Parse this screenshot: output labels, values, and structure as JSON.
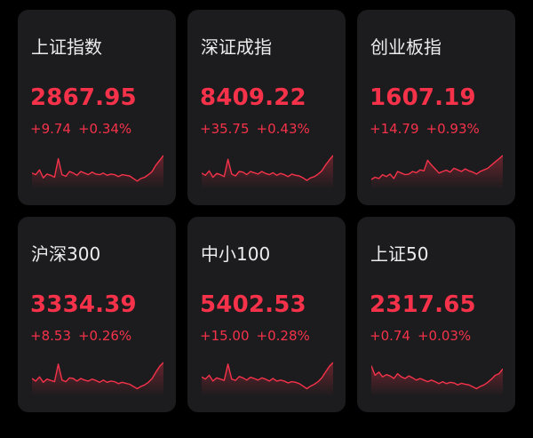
{
  "indices": [
    {
      "id": "sse",
      "name": "上证指数",
      "price": "2867.95",
      "change": "+9.74",
      "pct": "+0.34%",
      "trend": [
        0.55,
        0.6,
        0.45,
        0.7,
        0.58,
        0.62,
        0.68,
        0.1,
        0.6,
        0.65,
        0.5,
        0.55,
        0.62,
        0.5,
        0.55,
        0.6,
        0.52,
        0.58,
        0.6,
        0.55,
        0.62,
        0.58,
        0.6,
        0.66,
        0.6,
        0.62,
        0.64,
        0.72,
        0.8,
        0.72,
        0.68,
        0.6,
        0.5,
        0.3,
        0.15,
        0.0
      ]
    },
    {
      "id": "szse",
      "name": "深证成指",
      "price": "8409.22",
      "change": "+35.75",
      "pct": "+0.43%",
      "trend": [
        0.55,
        0.62,
        0.48,
        0.68,
        0.56,
        0.6,
        0.66,
        0.12,
        0.58,
        0.64,
        0.5,
        0.52,
        0.6,
        0.5,
        0.54,
        0.58,
        0.5,
        0.56,
        0.6,
        0.54,
        0.62,
        0.56,
        0.6,
        0.66,
        0.58,
        0.62,
        0.64,
        0.7,
        0.78,
        0.7,
        0.66,
        0.58,
        0.48,
        0.3,
        0.14,
        0.0
      ]
    },
    {
      "id": "chinext",
      "name": "创业板指",
      "price": "1607.19",
      "change": "+14.79",
      "pct": "+0.93%",
      "trend": [
        0.75,
        0.68,
        0.72,
        0.6,
        0.66,
        0.58,
        0.72,
        0.5,
        0.55,
        0.6,
        0.58,
        0.5,
        0.54,
        0.45,
        0.48,
        0.15,
        0.3,
        0.42,
        0.55,
        0.5,
        0.46,
        0.52,
        0.4,
        0.45,
        0.5,
        0.42,
        0.48,
        0.52,
        0.58,
        0.5,
        0.45,
        0.4,
        0.3,
        0.2,
        0.1,
        0.0
      ]
    },
    {
      "id": "hs300",
      "name": "沪深300",
      "price": "3334.39",
      "change": "+8.53",
      "pct": "+0.26%",
      "trend": [
        0.5,
        0.58,
        0.45,
        0.62,
        0.52,
        0.56,
        0.6,
        0.05,
        0.55,
        0.6,
        0.48,
        0.5,
        0.58,
        0.5,
        0.55,
        0.58,
        0.52,
        0.56,
        0.62,
        0.55,
        0.62,
        0.58,
        0.6,
        0.66,
        0.62,
        0.65,
        0.68,
        0.75,
        0.82,
        0.75,
        0.7,
        0.62,
        0.5,
        0.3,
        0.12,
        0.0
      ]
    },
    {
      "id": "sme100",
      "name": "中小100",
      "price": "5402.53",
      "change": "+15.00",
      "pct": "+0.28%",
      "trend": [
        0.45,
        0.52,
        0.4,
        0.58,
        0.48,
        0.52,
        0.56,
        0.05,
        0.52,
        0.56,
        0.44,
        0.48,
        0.55,
        0.46,
        0.5,
        0.55,
        0.48,
        0.52,
        0.58,
        0.5,
        0.58,
        0.55,
        0.58,
        0.64,
        0.6,
        0.62,
        0.66,
        0.74,
        0.82,
        0.74,
        0.68,
        0.6,
        0.48,
        0.3,
        0.12,
        0.0
      ]
    },
    {
      "id": "sse50",
      "name": "上证50",
      "price": "2317.65",
      "change": "+0.74",
      "pct": "+0.03%",
      "trend": [
        0.1,
        0.4,
        0.3,
        0.45,
        0.38,
        0.42,
        0.5,
        0.35,
        0.45,
        0.5,
        0.42,
        0.48,
        0.55,
        0.5,
        0.55,
        0.6,
        0.55,
        0.6,
        0.66,
        0.6,
        0.66,
        0.62,
        0.64,
        0.7,
        0.65,
        0.68,
        0.7,
        0.76,
        0.82,
        0.75,
        0.7,
        0.62,
        0.52,
        0.4,
        0.35,
        0.2
      ]
    }
  ],
  "colors": {
    "up": "#f5324a",
    "card_bg": "#1c1c1e",
    "label": "#ececec"
  }
}
